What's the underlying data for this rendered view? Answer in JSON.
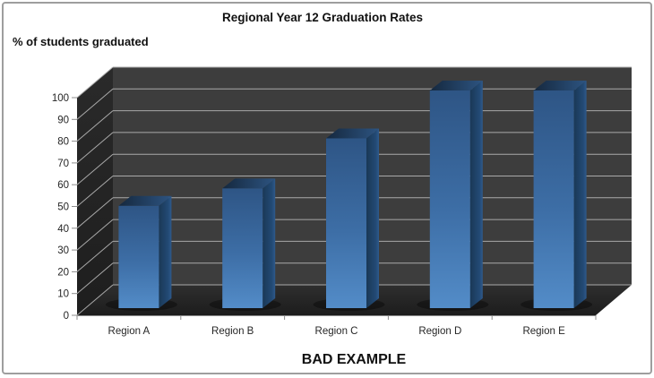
{
  "frame": {
    "background": "#ffffff",
    "border_color": "#9e9e9e"
  },
  "chart_data": {
    "type": "bar",
    "projection": "3d-column",
    "title": "Regional Year 12 Graduation Rates",
    "ylabel": "% of students graduated",
    "footer": "BAD EXAMPLE",
    "categories": [
      "Region A",
      "Region B",
      "Region C",
      "Region D",
      "Region E"
    ],
    "values": [
      47,
      55,
      78,
      100,
      100
    ],
    "ylim": [
      0,
      100
    ],
    "ytick_step": 10,
    "grid": true,
    "legend": "none"
  },
  "colors": {
    "back_wall": "#3d3d3d",
    "side_wall_top": "#2a2a2a",
    "side_wall_bottom": "#1e1e1e",
    "floor_back": "#2f2f2f",
    "floor_front": "#1c1c1c",
    "gridline": "#a9a9a9",
    "axis_line": "#8c8c8c",
    "bar_front_top": "#2e5585",
    "bar_front_bottom": "#538cc8",
    "bar_top_left": "#15283e",
    "bar_top_right": "#2d5481",
    "bar_side_left": "#1a3856",
    "bar_side_right": "#2f5a8c",
    "shadow": "rgba(0,0,0,0.35)"
  }
}
